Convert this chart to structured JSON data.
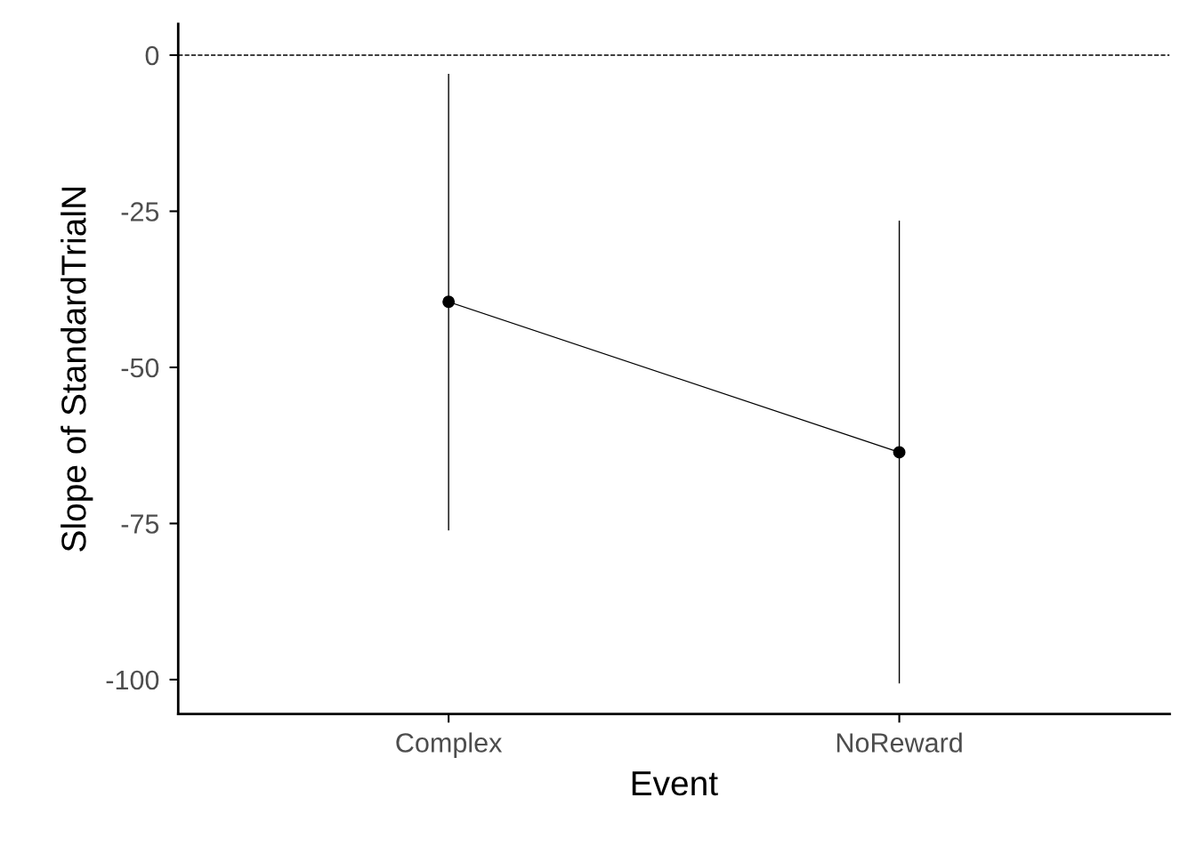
{
  "chart_data": {
    "type": "line",
    "xlabel": "Event",
    "ylabel": "Slope of StandardTrialN",
    "categories": [
      "Complex",
      "NoReward"
    ],
    "series": [
      {
        "color": "#000000",
        "values": [
          -39.5,
          -63.6
        ],
        "errors": [
          [
            -76.1,
            -3.0
          ],
          [
            -100.6,
            -26.5
          ]
        ]
      }
    ],
    "ylim": [
      -105.5,
      5
    ],
    "yticks": [
      0,
      -25,
      -50,
      -75,
      -100
    ],
    "ref_lines": [
      {
        "axis": "y",
        "value": 0,
        "color": "#000000",
        "line_style": "dashed"
      }
    ],
    "grid": false,
    "legend": false,
    "marker": "circle",
    "line_style": "solid"
  }
}
